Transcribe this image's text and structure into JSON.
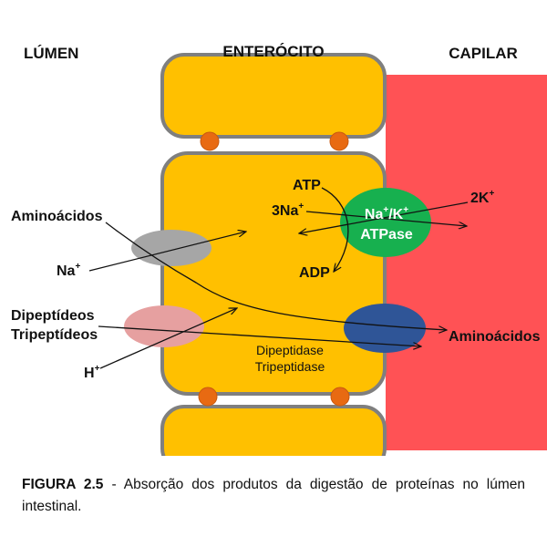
{
  "regions": {
    "lumen": "LÚMEN",
    "enterocyte": "ENTERÓCITO",
    "capillary": "CAPILAR"
  },
  "labels": {
    "aminoacids_left": "Aminoácidos",
    "na_left": "Na",
    "na_left_sup": "+",
    "dipeptides": "Dipeptídeos",
    "tripeptides": "Tripeptídeos",
    "h_plus": "H",
    "h_plus_sup": "+",
    "atp": "ATP",
    "three_na": "3Na",
    "three_na_sup": "+",
    "adp": "ADP",
    "pump_line1": "Na",
    "pump_line1_sup1": "+",
    "pump_line1_mid": "/K",
    "pump_line1_sup2": "+",
    "pump_line2": "ATPase",
    "two_k": "2K",
    "two_k_sup": "+",
    "aminoacids_right": "Aminoácidos",
    "enzyme_line1": "Dipeptidase",
    "enzyme_line2": "Tripeptidase"
  },
  "caption": {
    "label": "FIGURA 2.5",
    "text": " - Absorção dos produtos da digestão de proteínas no lúmen intestinal."
  },
  "colors": {
    "cell": "#FFC000",
    "cell_border": "#7F7F7F",
    "capillary": "#FF5255",
    "junction": "#E86A12",
    "transporter_gray": "#A6A6A6",
    "transporter_pink": "#E6A0A0",
    "pump": "#17B04F",
    "basolateral_transporter": "#2F5597"
  }
}
